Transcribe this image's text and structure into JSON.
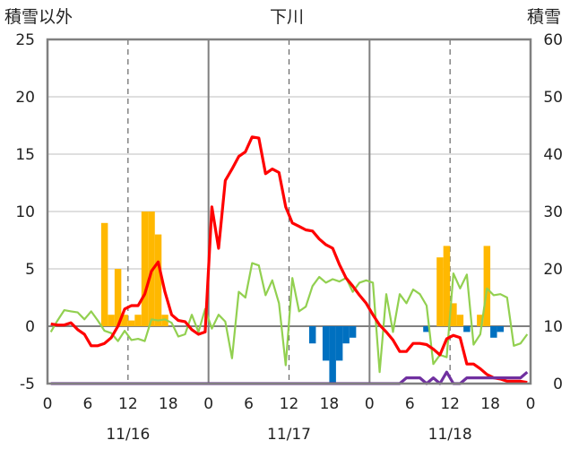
{
  "chart_data": {
    "type": "bar",
    "title": "下川",
    "ylabel_left": "積雪以外",
    "ylabel_right": "積雪",
    "ylim_left": [
      -5,
      25
    ],
    "ylim_right": [
      0,
      60
    ],
    "yticks_left": [
      "-5",
      "0",
      "5",
      "10",
      "15",
      "20",
      "25"
    ],
    "yticks_right": [
      "0",
      "10",
      "20",
      "30",
      "40",
      "50",
      "60"
    ],
    "x_hour_labels": [
      "0",
      "6",
      "12",
      "18",
      "0",
      "6",
      "12",
      "18",
      "0",
      "6",
      "12",
      "18",
      "0"
    ],
    "date_labels": [
      "11/16",
      "11/17",
      "11/18"
    ],
    "grid": "dashed vertical at 12h, solid vertical at day boundaries",
    "colors": {
      "precip_positive": "#FFB800",
      "precip_negative": "#0070C0",
      "temperature": "#FF0000",
      "green_series": "#92D050",
      "snow_depth": "#7030A0",
      "frame": "#808080"
    },
    "bars_hour": [
      8,
      9,
      10,
      11,
      12,
      13,
      14,
      15,
      16,
      17,
      39,
      40,
      41,
      42,
      43,
      44,
      45,
      46,
      47,
      56,
      57,
      58,
      59,
      60,
      61,
      62,
      63,
      64,
      65,
      66,
      67,
      68
    ],
    "bars_value": [
      9,
      1,
      5,
      1,
      0.5,
      1,
      10,
      10,
      8,
      1,
      -1.5,
      0,
      -3,
      -5,
      -3,
      -1.5,
      -1,
      0,
      0,
      -0.5,
      0,
      6,
      7,
      2,
      1,
      -0.5,
      0,
      1,
      7,
      -1,
      -0.5,
      0
    ],
    "series": [
      {
        "name": "",
        "axis": "left",
        "color": "#FF0000",
        "values": [
          0.2,
          0.1,
          0.1,
          0.3,
          -0.3,
          -0.7,
          -1.7,
          -1.7,
          -1.5,
          -1.0,
          0.0,
          1.5,
          1.8,
          1.8,
          2.8,
          4.8,
          5.6,
          3.0,
          1.0,
          0.5,
          0.4,
          -0.3,
          -0.7,
          -0.5,
          10.4,
          6.8,
          12.7,
          13.7,
          14.8,
          15.2,
          16.5,
          16.4,
          13.3,
          13.7,
          13.4,
          10.4,
          9.0,
          8.7,
          8.4,
          8.3,
          7.6,
          7.1,
          6.8,
          5.4,
          4.2,
          3.5,
          2.7,
          2.0,
          1.0,
          0.1,
          -0.5,
          -1.2,
          -2.2,
          -2.2,
          -1.5,
          -1.5,
          -1.6,
          -2.0,
          -2.5,
          -1.1,
          -0.8,
          -1.0,
          -3.3,
          -3.3,
          -3.7,
          -4.2,
          -4.5,
          -4.6,
          -4.8,
          -4.8,
          -4.8,
          -4.9
        ]
      },
      {
        "name": "",
        "axis": "left",
        "color": "#92D050",
        "values": [
          -0.5,
          0.5,
          1.4,
          1.3,
          1.2,
          0.6,
          1.3,
          0.5,
          -0.4,
          -0.6,
          -1.3,
          -0.4,
          -1.2,
          -1.1,
          -1.3,
          0.6,
          0.5,
          0.6,
          0.3,
          -0.9,
          -0.7,
          1.0,
          -0.5,
          1.5,
          -0.2,
          1.0,
          0.4,
          -2.8,
          3.0,
          2.5,
          5.5,
          5.3,
          2.7,
          4.0,
          2.0,
          -3.4,
          4.2,
          1.3,
          1.7,
          3.5,
          4.3,
          3.8,
          4.1,
          3.9,
          4.2,
          3.0,
          3.8,
          4.0,
          3.8,
          -4.0,
          2.8,
          -0.5,
          2.8,
          2.0,
          3.2,
          2.8,
          1.8,
          -3.3,
          -2.5,
          -2.7,
          4.6,
          3.3,
          4.5,
          -1.6,
          -0.7,
          3.3,
          2.7,
          2.8,
          2.5,
          -1.7,
          -1.5,
          -0.7
        ]
      },
      {
        "name": "",
        "axis": "right",
        "color": "#7030A0",
        "values": [
          0,
          0,
          0,
          0,
          0,
          0,
          0,
          0,
          0,
          0,
          0,
          0,
          0,
          0,
          0,
          0,
          0,
          0,
          0,
          0,
          0,
          0,
          0,
          0,
          0,
          0,
          0,
          0,
          0,
          0,
          0,
          0,
          0,
          0,
          0,
          0,
          0,
          0,
          0,
          0,
          0,
          0,
          0,
          0,
          0,
          0,
          0,
          0,
          0,
          0,
          0,
          0,
          0,
          1,
          1,
          1,
          0,
          1,
          0,
          2,
          0,
          0,
          1,
          1,
          1,
          1,
          1,
          1,
          1,
          1,
          1,
          2
        ]
      }
    ]
  }
}
